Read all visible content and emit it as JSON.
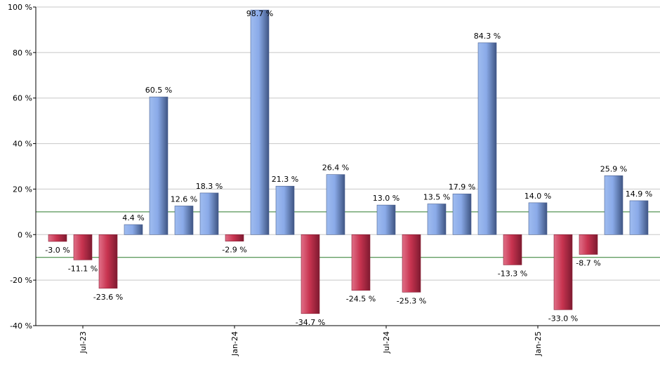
{
  "chart_data": {
    "type": "bar",
    "title": "",
    "xlabel": "",
    "ylabel": "",
    "ylim": [
      -40,
      100
    ],
    "y_ticks": [
      {
        "value": -40,
        "label": "-40 %"
      },
      {
        "value": -20,
        "label": "-20 %"
      },
      {
        "value": 0,
        "label": "0 %"
      },
      {
        "value": 20,
        "label": "20 %"
      },
      {
        "value": 40,
        "label": "40 %"
      },
      {
        "value": 60,
        "label": "60 %"
      },
      {
        "value": 80,
        "label": "80 %"
      },
      {
        "value": 100,
        "label": "100 %"
      }
    ],
    "x_ticks": [
      {
        "index": 1,
        "label": "Jul-23"
      },
      {
        "index": 7,
        "label": "Jan-24"
      },
      {
        "index": 13,
        "label": "Jul-24"
      },
      {
        "index": 19,
        "label": "Jan-25"
      }
    ],
    "reference_lines": [
      10,
      -10
    ],
    "grid": true,
    "values": [
      -3.0,
      -11.1,
      -23.6,
      4.4,
      60.5,
      12.6,
      18.3,
      -2.9,
      98.7,
      21.3,
      -34.7,
      26.4,
      -24.5,
      13.0,
      -25.3,
      13.5,
      17.9,
      84.3,
      -13.3,
      14.0,
      -33.0,
      -8.7,
      25.9,
      14.9
    ],
    "data_labels": [
      "-3.0 %",
      "-11.1 %",
      "-23.6 %",
      "4.4 %",
      "60.5 %",
      "12.6 %",
      "18.3 %",
      "-2.9 %",
      "98.7 %",
      "21.3 %",
      "-34.7 %",
      "26.4 %",
      "-24.5 %",
      "13.0 %",
      "-25.3 %",
      "13.5 %",
      "17.9 %",
      "84.3 %",
      "-13.3 %",
      "14.0 %",
      "-33.0 %",
      "-8.7 %",
      "25.9 %",
      "14.9 %"
    ],
    "colors": {
      "positive": "#7a9ee0",
      "positive_dark": "#4a6090",
      "positive_light": "#a8c4f5",
      "negative": "#c83450",
      "negative_dark": "#8a1e35",
      "negative_light": "#e87890",
      "reference_line": "#2a7a2a",
      "grid": "#c8c8c8",
      "axis": "#000000"
    }
  }
}
